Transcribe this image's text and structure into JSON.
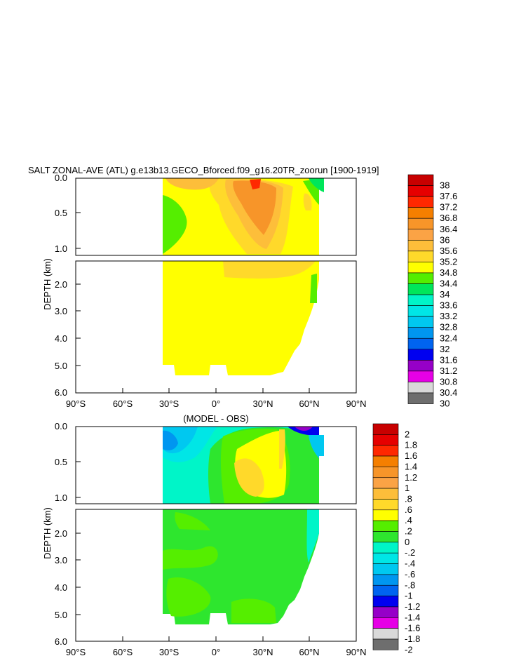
{
  "chart_data": [
    {
      "type": "heatmap",
      "title": "SALT ZONAL-AVE (ATL) g.e13b13.GECO_Bforced.f09_g16.20TR_zoorun [1900-1919]",
      "xlabel": "",
      "ylabel": "DEPTH (km)",
      "x_ticks": [
        "90°S",
        "60°S",
        "30°S",
        "0°",
        "30°N",
        "60°N",
        "90°N"
      ],
      "y_ticks_upper": [
        "0.0",
        "0.5",
        "1.0"
      ],
      "y_ticks_lower": [
        "2.0",
        "3.0",
        "4.0",
        "5.0",
        "6.0"
      ],
      "xlim": [
        -90,
        90
      ],
      "ylim": [
        0,
        6.0
      ],
      "colorbar_levels": [
        "38",
        "37.6",
        "37.2",
        "36.8",
        "36.4",
        "36",
        "35.6",
        "35.2",
        "34.8",
        "34.4",
        "34",
        "33.6",
        "33.2",
        "32.8",
        "32.4",
        "32",
        "31.6",
        "31.2",
        "30.8",
        "30.4",
        "30"
      ],
      "colorbar_colors": [
        "#c80000",
        "#e60000",
        "#ff2800",
        "#f57f00",
        "#f79529",
        "#fba345",
        "#fdbe3a",
        "#ffd92a",
        "#ffff00",
        "#55ee00",
        "#00e65a",
        "#00f5c8",
        "#00e6e6",
        "#00c8f0",
        "#0096f0",
        "#0064f0",
        "#0000f0",
        "#6400d7",
        "#9600c8",
        "#e600e6",
        "#d9d9d9",
        "#6e6e6e"
      ],
      "colorbar_colors_used": [
        "#c80000",
        "#e60000",
        "#ff2800",
        "#f57f00",
        "#f79529",
        "#fba345",
        "#fdbe3a",
        "#ffd92a",
        "#ffff00",
        "#55ee00",
        "#00e65a",
        "#00f5c8",
        "#00e6e6",
        "#00c8f0",
        "#0096f0",
        "#0064f0",
        "#0000f0",
        "#9600c8",
        "#e600e6",
        "#d9d9d9",
        "#6e6e6e"
      ]
    },
    {
      "type": "heatmap",
      "title": "(MODEL - OBS)",
      "xlabel": "",
      "ylabel": "DEPTH (km)",
      "x_ticks": [
        "90°S",
        "60°S",
        "30°S",
        "0°",
        "30°N",
        "60°N",
        "90°N"
      ],
      "y_ticks_upper": [
        "0.0",
        "0.5",
        "1.0"
      ],
      "y_ticks_lower": [
        "2.0",
        "3.0",
        "4.0",
        "5.0",
        "6.0"
      ],
      "xlim": [
        -90,
        90
      ],
      "ylim": [
        0,
        6.0
      ],
      "colorbar_levels": [
        "2",
        "1.8",
        "1.6",
        "1.4",
        "1.2",
        "1",
        ".8",
        ".6",
        ".4",
        ".2",
        "0",
        "-.2",
        "-.4",
        "-.6",
        "-.8",
        "-1",
        "-1.2",
        "-1.4",
        "-1.6",
        "-1.8",
        "-2"
      ],
      "colorbar_colors": [
        "#c80000",
        "#e60000",
        "#ff2800",
        "#f57f00",
        "#f79529",
        "#fba345",
        "#fdbe3a",
        "#ffd92a",
        "#ffff00",
        "#55ee00",
        "#2ee62e",
        "#00f5c8",
        "#00e6e6",
        "#00c8f0",
        "#0096f0",
        "#0064f0",
        "#0000f0",
        "#9600c8",
        "#e600e6",
        "#d9d9d9",
        "#6e6e6e"
      ]
    }
  ]
}
